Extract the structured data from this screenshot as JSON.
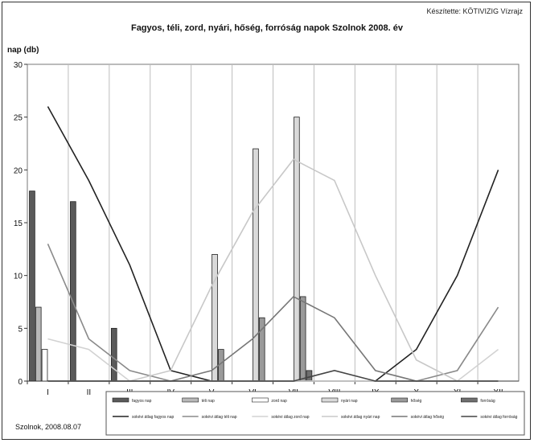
{
  "header": {
    "author": "Készítette: KÖTIVIZIG Vízrajz"
  },
  "footer": {
    "place_date": "Szolnok, 2008.08.07"
  },
  "chart_data": {
    "type": "bar",
    "title": "Fagyos, téli, zord, nyári, hőség, forróság napok Szolnok 2008. év",
    "ylabel": "nap (db)",
    "xlabel": "",
    "ylim": [
      0,
      30
    ],
    "yticks": [
      0,
      5,
      10,
      15,
      20,
      25,
      30
    ],
    "categories": [
      "I",
      "II",
      "III",
      "IV",
      "V",
      "VI",
      "VII",
      "VIII",
      "IX",
      "X",
      "XI",
      "XII"
    ],
    "grid": "vertical",
    "legend_position": "bottom",
    "series": [
      {
        "name": "fagyos nap",
        "color": "#5a5a5a",
        "values": [
          18,
          17,
          5,
          0,
          0,
          0,
          0,
          0,
          0,
          0,
          0,
          0
        ]
      },
      {
        "name": "téli nap",
        "color": "#b8b8b8",
        "values": [
          7,
          0,
          0,
          0,
          0,
          0,
          0,
          0,
          0,
          0,
          0,
          0
        ]
      },
      {
        "name": "zord nap",
        "color": "#ffffff",
        "values": [
          3,
          0,
          0,
          0,
          0,
          0,
          0,
          0,
          0,
          0,
          0,
          0
        ]
      },
      {
        "name": "nyári nap",
        "color": "#d9d9d9",
        "values": [
          0,
          0,
          0,
          0,
          12,
          22,
          25,
          0,
          0,
          0,
          0,
          0
        ]
      },
      {
        "name": "hőség",
        "color": "#9a9a9a",
        "values": [
          0,
          0,
          0,
          0,
          3,
          6,
          8,
          0,
          0,
          0,
          0,
          0
        ]
      },
      {
        "name": "forróság",
        "color": "#6f6f6f",
        "values": [
          0,
          0,
          0,
          0,
          0,
          0,
          1,
          0,
          0,
          0,
          0,
          0
        ]
      }
    ],
    "line_series": [
      {
        "name": "sokévi átlag fagyos nap",
        "color": "#222222",
        "values": [
          26,
          19,
          11,
          1,
          0,
          0,
          0,
          0,
          0,
          3,
          10,
          20
        ]
      },
      {
        "name": "sokévi átlag téli nap",
        "color": "#8a8a8a",
        "values": [
          13,
          4,
          1,
          0,
          0,
          0,
          0,
          0,
          0,
          0,
          1,
          7
        ]
      },
      {
        "name": "sokévi átlag zord nap",
        "color": "#d2d2d2",
        "values": [
          4,
          3,
          0,
          0,
          0,
          0,
          0,
          0,
          0,
          0,
          0,
          3
        ]
      },
      {
        "name": "sokévi átlag nyári nap",
        "color": "#c8c8c8",
        "values": [
          0,
          0,
          0,
          1,
          9,
          16,
          21,
          19,
          10,
          2,
          0,
          0
        ]
      },
      {
        "name": "sokévi átlag hőség",
        "color": "#777777",
        "values": [
          0,
          0,
          0,
          0,
          1,
          4,
          8,
          6,
          1,
          0,
          0,
          0
        ]
      },
      {
        "name": "sokévi átlag forróság",
        "color": "#444444",
        "values": [
          0,
          0,
          0,
          0,
          0,
          0,
          0,
          1,
          0,
          0,
          0,
          0
        ]
      }
    ]
  }
}
